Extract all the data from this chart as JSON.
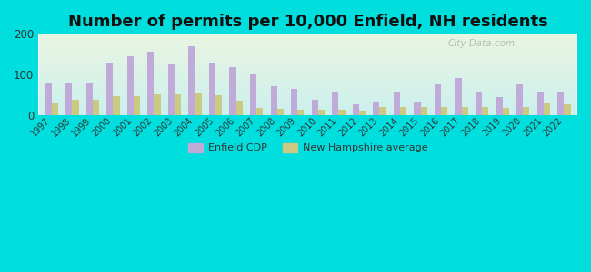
{
  "title": "Number of permits per 10,000 Enfield, NH residents",
  "years": [
    1997,
    1998,
    1999,
    2000,
    2001,
    2002,
    2003,
    2004,
    2005,
    2006,
    2007,
    2008,
    2009,
    2010,
    2011,
    2012,
    2013,
    2014,
    2015,
    2016,
    2017,
    2018,
    2019,
    2020,
    2021,
    2022
  ],
  "enfield": [
    80,
    78,
    80,
    130,
    145,
    155,
    125,
    170,
    130,
    118,
    100,
    70,
    65,
    38,
    55,
    25,
    30,
    55,
    32,
    75,
    92,
    55,
    44,
    75,
    55,
    57
  ],
  "nh_avg": [
    28,
    38,
    38,
    47,
    45,
    50,
    50,
    52,
    48,
    35,
    18,
    15,
    13,
    13,
    13,
    11,
    19,
    20,
    19,
    20,
    20,
    20,
    18,
    20,
    28,
    25
  ],
  "enfield_color": "#c0aad8",
  "nh_color": "#caca82",
  "background_outer": "#00dede",
  "ylim": [
    0,
    200
  ],
  "yticks": [
    0,
    100,
    200
  ],
  "title_fontsize": 13,
  "legend_enfield": "Enfield CDP",
  "legend_nh": "New Hampshire average",
  "watermark": "City-Data.com"
}
